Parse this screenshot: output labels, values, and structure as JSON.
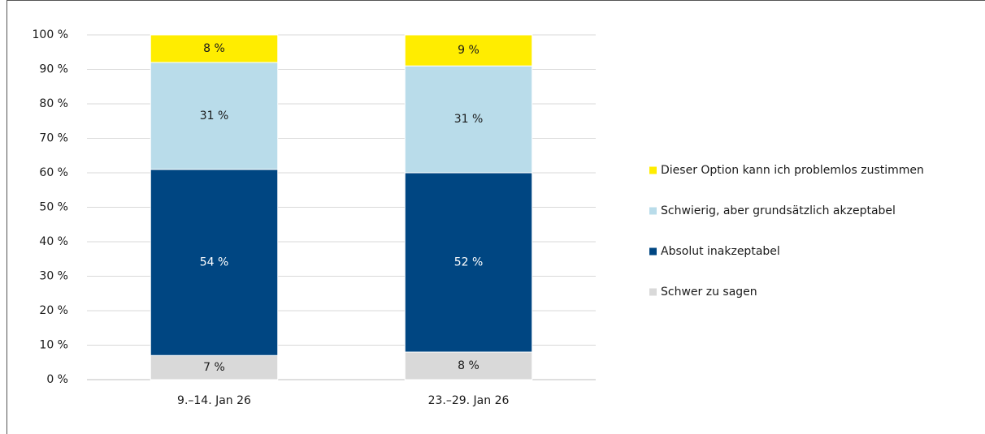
{
  "chart_data": {
    "type": "stacked_bar",
    "categories": [
      "9.–14. Jan 26",
      "23.–29. Jan 26"
    ],
    "series": [
      {
        "name": "Schwer zu sagen",
        "color": "#d9d9d9",
        "values": [
          7,
          8
        ],
        "value_labels": [
          "7 %",
          "8 %"
        ]
      },
      {
        "name": "Absolut inakzeptabel",
        "color": "#004682",
        "values": [
          54,
          52
        ],
        "value_labels": [
          "54 %",
          "52 %"
        ]
      },
      {
        "name": "Schwierig, aber grundsätzlich akzeptabel",
        "color": "#b9dcea",
        "values": [
          31,
          31
        ],
        "value_labels": [
          "31 %",
          "31 %"
        ]
      },
      {
        "name": "Dieser Option kann ich problemlos zustimmen",
        "color": "#ffed00",
        "values": [
          8,
          9
        ],
        "value_labels": [
          "8 %",
          "9 %"
        ]
      }
    ],
    "ylim": [
      0,
      100
    ],
    "yticks": [
      {
        "value": 0,
        "label": "0 %"
      },
      {
        "value": 10,
        "label": "10 %"
      },
      {
        "value": 20,
        "label": "20 %"
      },
      {
        "value": 30,
        "label": "30 %"
      },
      {
        "value": 40,
        "label": "40 %"
      },
      {
        "value": 50,
        "label": "50 %"
      },
      {
        "value": 60,
        "label": "60 %"
      },
      {
        "value": 70,
        "label": "70 %"
      },
      {
        "value": 80,
        "label": "80 %"
      },
      {
        "value": 90,
        "label": "90 %"
      },
      {
        "value": 100,
        "label": "100 %"
      }
    ],
    "grid": true,
    "legend": "right"
  }
}
